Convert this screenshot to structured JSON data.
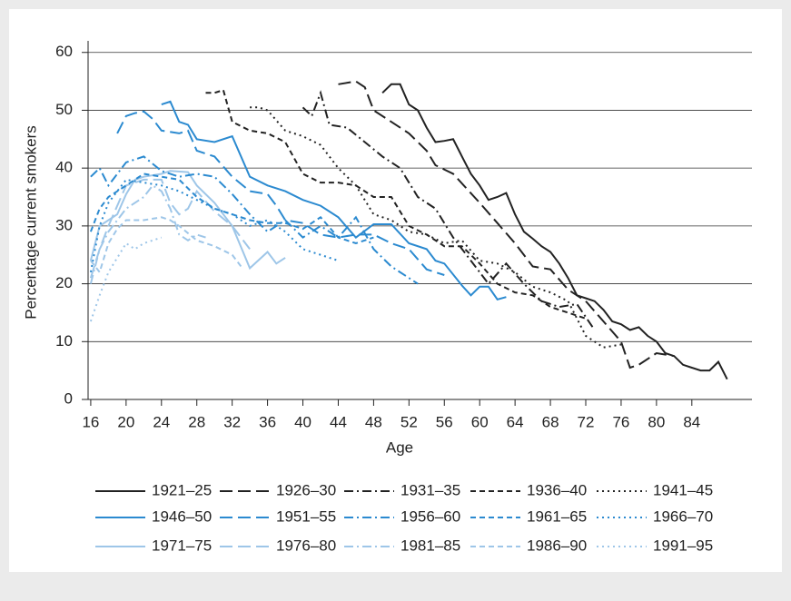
{
  "chart_data": {
    "type": "line",
    "x_label": "Age",
    "y_label": "Percentage current smokers",
    "xlim": [
      15.7,
      90.8
    ],
    "xticks": [
      16,
      20,
      24,
      28,
      32,
      36,
      40,
      44,
      48,
      52,
      56,
      60,
      64,
      68,
      72,
      76,
      80,
      84
    ],
    "ylim": [
      0,
      62
    ],
    "yticks": [
      0,
      10,
      20,
      30,
      40,
      50,
      60
    ],
    "grid": true,
    "series": [
      {
        "name": "1921–25",
        "color": "#222222",
        "dash": "solid",
        "x": [
          49,
          50,
          51,
          52,
          53,
          54,
          55,
          56,
          57,
          58,
          59,
          60,
          61,
          62,
          63,
          64,
          65,
          66,
          67,
          68,
          69,
          70,
          71,
          72,
          73,
          74,
          75,
          76,
          77,
          78,
          79,
          80,
          81,
          82,
          83,
          84,
          85,
          86,
          87,
          88
        ],
        "values": [
          53,
          54.5,
          54.5,
          51,
          50,
          47,
          44.5,
          44.7,
          45,
          42,
          39,
          37,
          34.5,
          35,
          35.7,
          32,
          29,
          27.8,
          26.5,
          25.5,
          23.5,
          21,
          18,
          17.5,
          17,
          15.5,
          13.5,
          13,
          12,
          12.5,
          11,
          10,
          8,
          7.5,
          6,
          5.5,
          5,
          5,
          6.5,
          3.5
        ]
      },
      {
        "name": "1926–30",
        "color": "#222222",
        "dash": "long-dash",
        "x": [
          44,
          46,
          47,
          48,
          50,
          52,
          54,
          55,
          57,
          60,
          62,
          64,
          66,
          68,
          70,
          72,
          74,
          76,
          77,
          78,
          80,
          82
        ],
        "values": [
          54.5,
          55,
          54,
          50,
          48,
          46,
          43,
          40.5,
          39,
          34,
          30.5,
          27,
          23,
          22.5,
          19,
          17,
          13.5,
          10,
          5.5,
          6,
          8,
          7.5
        ]
      },
      {
        "name": "1931–35",
        "color": "#222222",
        "dash": "dash-dot",
        "x": [
          40,
          41,
          42,
          43,
          45,
          47,
          49,
          51,
          53,
          55,
          57,
          59,
          61,
          63,
          65,
          67,
          69,
          71,
          73
        ],
        "values": [
          50.5,
          49,
          53,
          47.5,
          47,
          44.5,
          42,
          40,
          35,
          33,
          28,
          24,
          20,
          23.5,
          20,
          17,
          16,
          16.5,
          12
        ]
      },
      {
        "name": "1936–40",
        "color": "#222222",
        "dash": "short-dash",
        "x": [
          29,
          30,
          31,
          32,
          34,
          36,
          38,
          40,
          42,
          44,
          46,
          48,
          50,
          52,
          54,
          56,
          58,
          60,
          62,
          64,
          66,
          68,
          70,
          72
        ],
        "values": [
          53,
          53,
          53.5,
          48,
          46.5,
          46,
          44.5,
          39,
          37.5,
          37.5,
          37,
          35,
          35,
          30,
          28.5,
          26.5,
          26.5,
          23.5,
          20,
          18.5,
          18,
          16,
          15,
          14
        ]
      },
      {
        "name": "1941–45",
        "color": "#222222",
        "dash": "dotted",
        "x": [
          34,
          35,
          36,
          38,
          40,
          42,
          44,
          46,
          48,
          50,
          52,
          54,
          56,
          58,
          60,
          62,
          64,
          66,
          68,
          70,
          72,
          74,
          76
        ],
        "values": [
          50.5,
          50.5,
          50,
          46.5,
          45.5,
          44,
          40,
          37,
          32,
          31,
          29,
          28.5,
          27,
          27.5,
          24,
          23.5,
          22,
          19.5,
          18.5,
          17,
          11,
          9,
          9.5
        ]
      },
      {
        "name": "1946–50",
        "color": "#2b8ad0",
        "dash": "solid",
        "x": [
          24,
          25,
          26,
          27,
          28,
          30,
          32,
          34,
          36,
          38,
          40,
          42,
          44,
          46,
          48,
          50,
          52,
          54,
          55,
          56,
          58,
          59,
          60,
          61,
          62,
          63
        ],
        "values": [
          51,
          51.5,
          48,
          47.5,
          45,
          44.5,
          45.5,
          38.5,
          37,
          36,
          34.5,
          33.5,
          31.5,
          28,
          30.3,
          30.3,
          27,
          26,
          24,
          23.5,
          19.7,
          18,
          19.5,
          19.5,
          17.3,
          17.7
        ]
      },
      {
        "name": "1951–55",
        "color": "#2b8ad0",
        "dash": "long-dash",
        "x": [
          19,
          20,
          21,
          22,
          23,
          24,
          26,
          27,
          28,
          30,
          32,
          34,
          36,
          37,
          38,
          40,
          42,
          44,
          46,
          48,
          50,
          52,
          54,
          56
        ],
        "values": [
          46,
          49,
          49.5,
          49.8,
          48.5,
          46.5,
          46,
          46.5,
          43,
          42,
          38.5,
          36,
          35.5,
          33.5,
          31,
          30.5,
          28.5,
          28,
          28.5,
          28.5,
          27,
          26,
          22.5,
          21.5
        ]
      },
      {
        "name": "1956–60",
        "color": "#2b8ad0",
        "dash": "dash-dot",
        "x": [
          16,
          17,
          18,
          20,
          22,
          24,
          26,
          28,
          30,
          32,
          34,
          36,
          38,
          40,
          42,
          44,
          46,
          48,
          50,
          52,
          53
        ],
        "values": [
          38.5,
          40,
          37,
          41,
          42,
          39.5,
          38.5,
          39,
          38.5,
          35.5,
          32,
          29,
          31,
          28,
          30,
          28,
          31.5,
          26,
          23,
          21,
          20
        ]
      },
      {
        "name": "1961–65",
        "color": "#2b8ad0",
        "dash": "short-dash",
        "x": [
          16,
          17,
          18,
          20,
          22,
          24,
          26,
          28,
          30,
          32,
          34,
          36,
          38,
          40,
          42,
          44,
          46,
          48
        ],
        "values": [
          29,
          33,
          35,
          37,
          39,
          38.5,
          38,
          35,
          33,
          32,
          31,
          30.5,
          30.5,
          29.5,
          31.5,
          28,
          27,
          28
        ]
      },
      {
        "name": "1966–70",
        "color": "#2b8ad0",
        "dash": "dotted",
        "x": [
          16,
          17,
          18,
          20,
          22,
          24,
          26,
          28,
          30,
          32,
          34,
          36,
          38,
          40,
          42,
          44
        ],
        "values": [
          22,
          30,
          34,
          38,
          37.5,
          37,
          36,
          34.5,
          33,
          32,
          30,
          31,
          29,
          26,
          25,
          24
        ]
      },
      {
        "name": "1971–75",
        "color": "#9ec6e8",
        "dash": "solid",
        "x": [
          16,
          17,
          18,
          19,
          20,
          21,
          22,
          24,
          25,
          27,
          28,
          30,
          32,
          34,
          36,
          37,
          38
        ],
        "values": [
          24,
          30,
          31,
          32,
          35.5,
          38,
          38.5,
          39,
          39.5,
          39.3,
          37,
          34,
          30,
          22.7,
          25.5,
          23.5,
          24.5
        ]
      },
      {
        "name": "1976–80",
        "color": "#9ec6e8",
        "dash": "long-dash",
        "x": [
          16,
          17,
          18,
          20,
          22,
          24,
          25,
          26,
          27,
          28,
          30,
          32,
          34
        ],
        "values": [
          21,
          26,
          30,
          37,
          38,
          38,
          34,
          32,
          33,
          36,
          32.5,
          30,
          26
        ]
      },
      {
        "name": "1981–85",
        "color": "#9ec6e8",
        "dash": "dash-dot",
        "x": [
          16,
          17,
          18,
          20,
          22,
          23,
          24,
          25,
          26,
          27,
          28,
          29
        ],
        "values": [
          20,
          26,
          29,
          33,
          35,
          37,
          36,
          33,
          28.5,
          27.5,
          28.5,
          28
        ]
      },
      {
        "name": "1986–90",
        "color": "#9ec6e8",
        "dash": "short-dash",
        "x": [
          16,
          17,
          18,
          19,
          20,
          22,
          24,
          25,
          26,
          28,
          30,
          32,
          33
        ],
        "values": [
          24,
          22,
          27,
          29.5,
          31,
          31,
          31.5,
          31,
          30,
          27.5,
          26.5,
          25,
          23
        ]
      },
      {
        "name": "1991–95",
        "color": "#9ec6e8",
        "dash": "dotted",
        "x": [
          16,
          17,
          18,
          20,
          21,
          22,
          24
        ],
        "values": [
          13.5,
          18,
          22,
          27,
          26,
          27,
          28
        ]
      }
    ]
  }
}
